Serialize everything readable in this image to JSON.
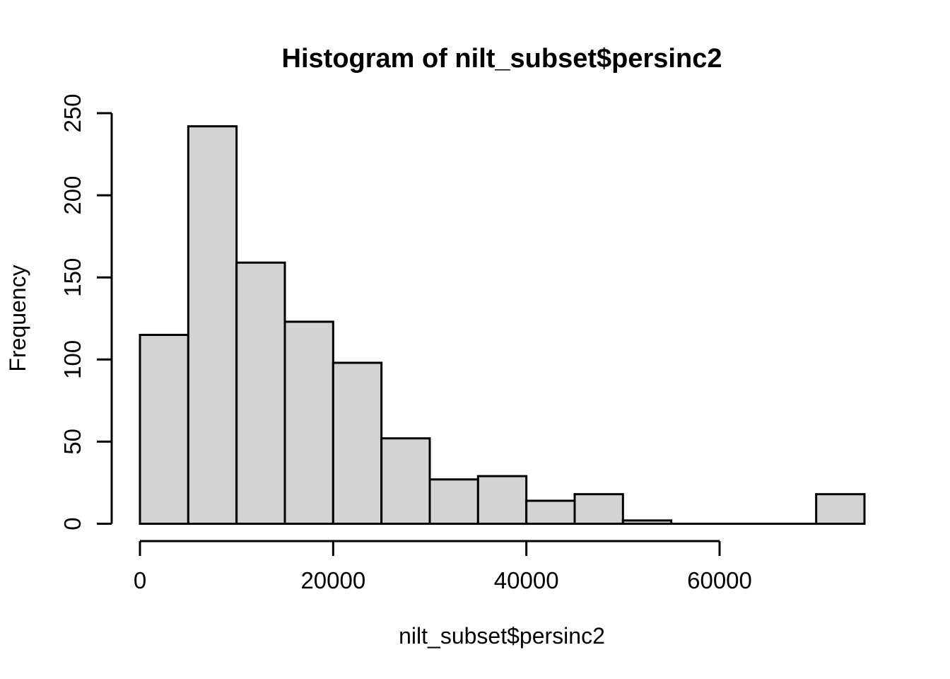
{
  "chart_data": {
    "type": "bar",
    "subtype": "histogram",
    "title": "Histogram of nilt_subset$persinc2",
    "xlabel": "nilt_subset$persinc2",
    "ylabel": "Frequency",
    "bin_start": 0,
    "bin_width": 5000,
    "bin_edges": [
      0,
      5000,
      10000,
      15000,
      20000,
      25000,
      30000,
      35000,
      40000,
      45000,
      50000,
      55000,
      60000,
      65000,
      70000,
      75000
    ],
    "counts": [
      115,
      242,
      159,
      123,
      98,
      52,
      27,
      29,
      14,
      18,
      2,
      0,
      0,
      0,
      18
    ],
    "x_ticks": [
      0,
      20000,
      40000,
      60000
    ],
    "x_tick_labels": [
      "0",
      "20000",
      "40000",
      "60000"
    ],
    "y_ticks": [
      0,
      50,
      100,
      150,
      200,
      250
    ],
    "y_tick_labels": [
      "0",
      "50",
      "100",
      "150",
      "200",
      "250"
    ],
    "xlim": [
      0,
      75000
    ],
    "ylim": [
      0,
      250
    ],
    "grid": false,
    "legend": "none",
    "bar_fill": "#d3d3d3",
    "bar_border": "#000000",
    "axis_color": "#000000",
    "text_color": "#000000",
    "background": "#ffffff"
  }
}
